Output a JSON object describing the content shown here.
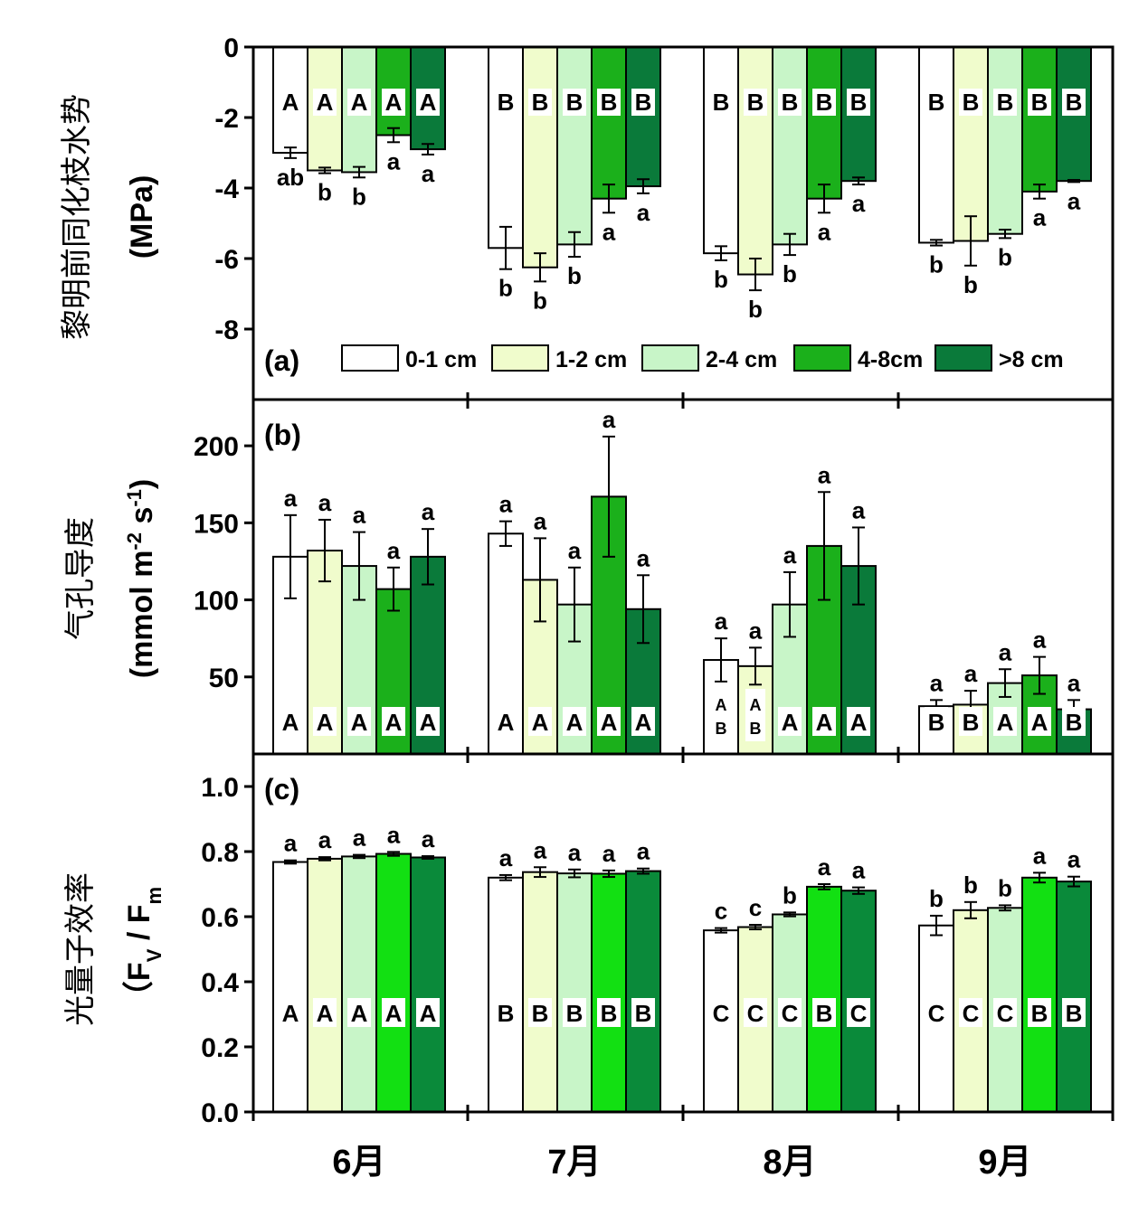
{
  "figure": {
    "groups": [
      "6月",
      "7月",
      "8月",
      "9月"
    ],
    "legend": {
      "entries": [
        "0-1 cm",
        "1-2 cm",
        "2-4 cm",
        "4-8cm",
        ">8 cm"
      ]
    },
    "colors": [
      "#ffffff",
      "#f0fccc",
      "#c8f5c8",
      "#1bb01b",
      "#0a7a3a"
    ],
    "colors_panel_c": [
      "#ffffff",
      "#f0fccc",
      "#c8f5c8",
      "#12e012",
      "#0a8a3a"
    ]
  },
  "chart_data": [
    {
      "type": "bar",
      "panel_label": "(a)",
      "ylabel_line1": "黎明前同化枝水势",
      "ylabel_line2": "(MPa)",
      "ylim": [
        -10.0,
        0
      ],
      "yticks": [
        "0",
        "-2",
        "-4",
        "-6",
        "-8"
      ],
      "ytick_values": [
        0,
        -2,
        -4,
        -6,
        -8
      ],
      "categories": [
        "6月",
        "7月",
        "8月",
        "9月"
      ],
      "series": [
        {
          "name": "0-1 cm",
          "values": [
            -3.0,
            -5.7,
            -5.85,
            -5.55
          ],
          "errors": [
            0.15,
            0.6,
            0.2,
            0.08
          ],
          "letters_low": [
            "ab",
            "b",
            "b",
            "b"
          ],
          "letters_up": [
            "A",
            "B",
            "B",
            "B"
          ]
        },
        {
          "name": "1-2 cm",
          "values": [
            -3.5,
            -6.25,
            -6.45,
            -5.5
          ],
          "errors": [
            0.08,
            0.4,
            0.45,
            0.7
          ],
          "letters_low": [
            "b",
            "b",
            "b",
            "b"
          ],
          "letters_up": [
            "A",
            "B",
            "B",
            "B"
          ]
        },
        {
          "name": "2-4 cm",
          "values": [
            -3.55,
            -5.6,
            -5.6,
            -5.3
          ],
          "errors": [
            0.15,
            0.35,
            0.3,
            0.12
          ],
          "letters_low": [
            "b",
            "b",
            "b",
            "b"
          ],
          "letters_up": [
            "A",
            "B",
            "B",
            "B"
          ]
        },
        {
          "name": "4-8cm",
          "values": [
            -2.5,
            -4.3,
            -4.3,
            -4.1
          ],
          "errors": [
            0.2,
            0.4,
            0.4,
            0.2
          ],
          "letters_low": [
            "a",
            "a",
            "a",
            "a"
          ],
          "letters_up": [
            "A",
            "B",
            "B",
            "B"
          ]
        },
        {
          "name": ">8 cm",
          "values": [
            -2.9,
            -3.95,
            -3.8,
            -3.8
          ],
          "errors": [
            0.15,
            0.2,
            0.1,
            0.03
          ],
          "letters_low": [
            "a",
            "a",
            "a",
            "a"
          ],
          "letters_up": [
            "A",
            "B",
            "B",
            "B"
          ]
        }
      ]
    },
    {
      "type": "bar",
      "panel_label": "(b)",
      "ylabel_line1": "气孔导度",
      "ylabel_line2": "(mmol m",
      "ylabel_sup1": "-2",
      "ylabel_mid": " s",
      "ylabel_sup2": "-1",
      "ylabel_end": ")",
      "ylim": [
        0,
        230
      ],
      "yticks": [
        "50",
        "100",
        "150",
        "200"
      ],
      "ytick_values": [
        50,
        100,
        150,
        200
      ],
      "categories": [
        "6月",
        "7月",
        "8月",
        "9月"
      ],
      "series": [
        {
          "name": "0-1 cm",
          "values": [
            128,
            143,
            61,
            31
          ],
          "errors": [
            27,
            8,
            14,
            4
          ],
          "letters_top": [
            "a",
            "a",
            "a",
            "a"
          ],
          "letters_bottom": [
            "A",
            "A",
            "AB",
            "B"
          ]
        },
        {
          "name": "1-2 cm",
          "values": [
            132,
            113,
            57,
            32
          ],
          "errors": [
            20,
            27,
            12,
            9
          ],
          "letters_top": [
            "a",
            "a",
            "a",
            "a"
          ],
          "letters_bottom": [
            "A",
            "A",
            "AB",
            "B"
          ]
        },
        {
          "name": "2-4 cm",
          "values": [
            122,
            97,
            97,
            46
          ],
          "errors": [
            22,
            24,
            21,
            9
          ],
          "letters_top": [
            "a",
            "a",
            "a",
            "a"
          ],
          "letters_bottom": [
            "A",
            "A",
            "A",
            "A"
          ]
        },
        {
          "name": "4-8cm",
          "values": [
            107,
            167,
            135,
            51
          ],
          "errors": [
            14,
            39,
            35,
            12
          ],
          "letters_top": [
            "a",
            "a",
            "a",
            "a"
          ],
          "letters_bottom": [
            "A",
            "A",
            "A",
            "A"
          ]
        },
        {
          "name": ">8 cm",
          "values": [
            128,
            94,
            122,
            29
          ],
          "errors": [
            18,
            22,
            25,
            6
          ],
          "letters_top": [
            "a",
            "a",
            "a",
            "a"
          ],
          "letters_bottom": [
            "A",
            "A",
            "A",
            "B"
          ]
        }
      ]
    },
    {
      "type": "bar",
      "panel_label": "(c)",
      "ylabel_line1": "光量子效率",
      "ylabel_line2": "（F",
      "ylabel_sub1": "V",
      "ylabel_mid": " / F",
      "ylabel_sub2": "m",
      "ylabel_end": "",
      "ylim": [
        0,
        1.1
      ],
      "yticks": [
        "0.0",
        "0.2",
        "0.4",
        "0.6",
        "0.8",
        "1.0"
      ],
      "ytick_values": [
        0,
        0.2,
        0.4,
        0.6,
        0.8,
        1.0
      ],
      "categories": [
        "6月",
        "7月",
        "8月",
        "9月"
      ],
      "series": [
        {
          "name": "0-1 cm",
          "values": [
            0.768,
            0.72,
            0.558,
            0.573
          ],
          "errors": [
            0.005,
            0.008,
            0.007,
            0.03
          ],
          "letters_top": [
            "a",
            "a",
            "c",
            "b"
          ],
          "letters_bottom": [
            "A",
            "B",
            "C",
            "C"
          ]
        },
        {
          "name": "1-2 cm",
          "values": [
            0.778,
            0.737,
            0.568,
            0.62
          ],
          "errors": [
            0.005,
            0.015,
            0.007,
            0.025
          ],
          "letters_top": [
            "a",
            "a",
            "c",
            "b"
          ],
          "letters_bottom": [
            "A",
            "B",
            "C",
            "C"
          ]
        },
        {
          "name": "2-4 cm",
          "values": [
            0.785,
            0.733,
            0.607,
            0.627
          ],
          "errors": [
            0.005,
            0.012,
            0.006,
            0.008
          ],
          "letters_top": [
            "a",
            "a",
            "b",
            "b"
          ],
          "letters_bottom": [
            "A",
            "B",
            "C",
            "C"
          ]
        },
        {
          "name": "4-8cm",
          "values": [
            0.793,
            0.732,
            0.692,
            0.72
          ],
          "errors": [
            0.006,
            0.01,
            0.008,
            0.015
          ],
          "letters_top": [
            "a",
            "a",
            "a",
            "a"
          ],
          "letters_bottom": [
            "A",
            "B",
            "B",
            "B"
          ]
        },
        {
          "name": ">8 cm",
          "values": [
            0.782,
            0.74,
            0.68,
            0.708
          ],
          "errors": [
            0.004,
            0.008,
            0.01,
            0.015
          ],
          "letters_top": [
            "a",
            "a",
            "a",
            "a"
          ],
          "letters_bottom": [
            "A",
            "B",
            "C",
            "B"
          ]
        }
      ]
    }
  ]
}
